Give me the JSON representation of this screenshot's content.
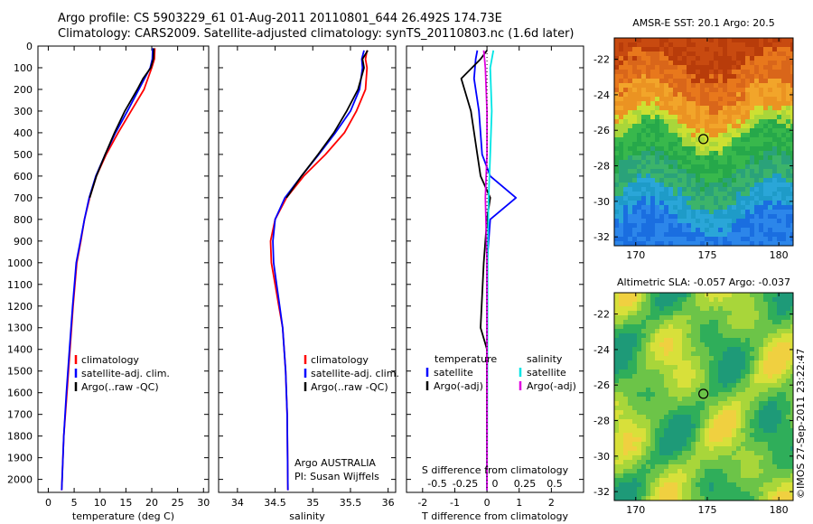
{
  "header": {
    "line1": "Argo profile: CS 5903229_61 01-Aug-2011 20110801_644 26.492S 174.73E",
    "line2": "Climatology: CARS2009. Satellite-adjusted climatology: synTS_20110803.nc (1.6d later)"
  },
  "timestamp": "©IMOS 27-Sep-2011 23:22:47",
  "colors": {
    "climatology": "#ff0000",
    "satellite": "#0000ff",
    "argo": "#000000",
    "sal_satellite": "#00e5e5",
    "sal_argo": "#e000e0"
  },
  "chart_data": [
    {
      "type": "line",
      "xlabel": "temperature (deg C)",
      "ylabel": "",
      "xlim": [
        -2,
        31
      ],
      "ylim": [
        2060,
        0
      ],
      "xticks": [
        0,
        5,
        10,
        15,
        20,
        25,
        30
      ],
      "yticks": [
        0,
        100,
        200,
        300,
        400,
        500,
        600,
        700,
        800,
        900,
        1000,
        1100,
        1200,
        1300,
        1400,
        1500,
        1600,
        1700,
        1800,
        1900,
        2000
      ],
      "legend": [
        "climatology",
        "satellite-adj. clim.",
        "Argo(..raw -QC)"
      ],
      "series": [
        {
          "name": "climatology",
          "points": [
            [
              20.6,
              10
            ],
            [
              20.5,
              60
            ],
            [
              20,
              100
            ],
            [
              18.5,
              200
            ],
            [
              16,
              300
            ],
            [
              13.5,
              400
            ],
            [
              11.2,
              500
            ],
            [
              9.3,
              600
            ],
            [
              8,
              700
            ],
            [
              7,
              800
            ],
            [
              6.3,
              900
            ],
            [
              5.5,
              1000
            ],
            [
              4.8,
              1200
            ],
            [
              4.2,
              1400
            ],
            [
              3.6,
              1600
            ],
            [
              3,
              1800
            ],
            [
              2.6,
              2050
            ]
          ]
        },
        {
          "name": "satellite-adj. clim.",
          "points": [
            [
              20.2,
              10
            ],
            [
              20.1,
              60
            ],
            [
              19.7,
              100
            ],
            [
              17.5,
              200
            ],
            [
              15.3,
              300
            ],
            [
              13,
              400
            ],
            [
              11,
              500
            ],
            [
              9.2,
              600
            ],
            [
              7.9,
              700
            ],
            [
              7,
              800
            ],
            [
              6.2,
              900
            ],
            [
              5.4,
              1000
            ],
            [
              4.7,
              1200
            ],
            [
              4.1,
              1400
            ],
            [
              3.5,
              1600
            ],
            [
              3,
              1800
            ],
            [
              2.6,
              2050
            ]
          ]
        },
        {
          "name": "Argo(..raw -QC)",
          "points": [
            [
              20.4,
              10
            ],
            [
              20.3,
              60
            ],
            [
              19.8,
              100
            ],
            [
              18.3,
              150
            ],
            [
              17.2,
              200
            ],
            [
              14.8,
              300
            ],
            [
              12.8,
              400
            ],
            [
              11,
              500
            ],
            [
              9.3,
              600
            ],
            [
              8,
              700
            ]
          ]
        }
      ]
    },
    {
      "type": "line",
      "xlabel": "salinity",
      "xlim": [
        33.75,
        36.1
      ],
      "ylim": [
        2060,
        0
      ],
      "xticks": [
        34,
        34.5,
        35,
        35.5,
        36
      ],
      "legend": [
        "climatology",
        "satellite-adj. clim.",
        "Argo(..raw -QC)"
      ],
      "annotation": [
        "Argo AUSTRALIA",
        "PI: Susan Wijffels"
      ],
      "series": [
        {
          "name": "climatology",
          "points": [
            [
              35.72,
              20
            ],
            [
              35.7,
              60
            ],
            [
              35.72,
              100
            ],
            [
              35.7,
              200
            ],
            [
              35.58,
              300
            ],
            [
              35.42,
              400
            ],
            [
              35.17,
              500
            ],
            [
              34.88,
              600
            ],
            [
              34.65,
              700
            ],
            [
              34.5,
              800
            ],
            [
              34.44,
              900
            ],
            [
              34.45,
              1000
            ],
            [
              34.5,
              1100
            ],
            [
              34.55,
              1200
            ],
            [
              34.6,
              1300
            ],
            [
              34.64,
              1500
            ],
            [
              34.66,
              1700
            ],
            [
              34.67,
              2050
            ]
          ]
        },
        {
          "name": "satellite-adj. clim.",
          "points": [
            [
              35.68,
              20
            ],
            [
              35.65,
              60
            ],
            [
              35.66,
              100
            ],
            [
              35.62,
              200
            ],
            [
              35.5,
              300
            ],
            [
              35.3,
              400
            ],
            [
              35.08,
              500
            ],
            [
              34.85,
              600
            ],
            [
              34.63,
              700
            ],
            [
              34.5,
              800
            ],
            [
              34.47,
              900
            ],
            [
              34.48,
              1000
            ],
            [
              34.52,
              1100
            ],
            [
              34.56,
              1200
            ],
            [
              34.6,
              1300
            ],
            [
              34.64,
              1500
            ],
            [
              34.66,
              1700
            ],
            [
              34.67,
              2050
            ]
          ]
        },
        {
          "name": "Argo(..raw -QC)",
          "points": [
            [
              35.73,
              20
            ],
            [
              35.66,
              60
            ],
            [
              35.68,
              100
            ],
            [
              35.6,
              200
            ],
            [
              35.45,
              300
            ],
            [
              35.28,
              400
            ],
            [
              35.07,
              500
            ],
            [
              34.85,
              600
            ],
            [
              34.65,
              700
            ]
          ]
        }
      ]
    },
    {
      "type": "line",
      "xlabel": "T difference from climatology",
      "xlabel_top": "S difference from climatology",
      "xlim": [
        -2.5,
        3
      ],
      "ylim": [
        2060,
        0
      ],
      "xticks": [
        -2,
        -1,
        0,
        1,
        2
      ],
      "top_ticks": [
        "-0.5",
        "-0.25",
        "0",
        "0.25",
        "0.5"
      ],
      "legend_left_title": "temperature",
      "legend_right_title": "salinity",
      "legend": [
        "satellite",
        "Argo(-adj)",
        "satellite",
        "Argo(-adj)"
      ],
      "series": [
        {
          "name": "T satellite",
          "points": [
            [
              -0.3,
              20
            ],
            [
              -0.35,
              60
            ],
            [
              -0.4,
              150
            ],
            [
              -0.25,
              300
            ],
            [
              -0.15,
              500
            ],
            [
              0.1,
              600
            ],
            [
              0.9,
              700
            ],
            [
              0.1,
              800
            ],
            [
              0,
              1000
            ],
            [
              0,
              1300
            ],
            [
              0,
              2050
            ]
          ]
        },
        {
          "name": "T Argo",
          "points": [
            [
              0,
              20
            ],
            [
              -0.2,
              60
            ],
            [
              -0.8,
              150
            ],
            [
              -0.5,
              300
            ],
            [
              -0.3,
              500
            ],
            [
              -0.2,
              600
            ],
            [
              0.1,
              700
            ],
            [
              0,
              800
            ],
            [
              -0.1,
              1000
            ],
            [
              -0.2,
              1300
            ],
            [
              0,
              1400
            ],
            [
              0,
              2050
            ]
          ]
        },
        {
          "name": "S satellite",
          "points": [
            [
              0.2,
              20
            ],
            [
              0.1,
              100
            ],
            [
              0.15,
              300
            ],
            [
              0.1,
              500
            ],
            [
              0.05,
              700
            ],
            [
              0.02,
              1000
            ],
            [
              0,
              2050
            ]
          ]
        },
        {
          "name": "S Argo",
          "points": [
            [
              -0.1,
              20
            ],
            [
              -0.05,
              100
            ],
            [
              0,
              300
            ],
            [
              0,
              500
            ],
            [
              -0.05,
              700
            ],
            [
              0,
              1000
            ],
            [
              0,
              2050
            ]
          ]
        }
      ]
    },
    {
      "type": "heatmap",
      "title": "AMSR-E SST: 20.1 Argo: 20.5",
      "xlim": [
        168.5,
        181
      ],
      "ylim": [
        -32.5,
        -20.8
      ],
      "xticks": [
        170,
        175,
        180
      ],
      "yticks": [
        -22,
        -24,
        -26,
        -28,
        -30,
        -32
      ],
      "marker": [
        174.73,
        -26.492
      ]
    },
    {
      "type": "heatmap",
      "title": "Altimetric SLA: -0.057 Argo: -0.037",
      "xlim": [
        168.5,
        181
      ],
      "ylim": [
        -32.5,
        -20.8
      ],
      "xticks": [
        170,
        175,
        180
      ],
      "yticks": [
        -22,
        -24,
        -26,
        -28,
        -30,
        -32
      ],
      "marker": [
        174.73,
        -26.492
      ]
    }
  ]
}
